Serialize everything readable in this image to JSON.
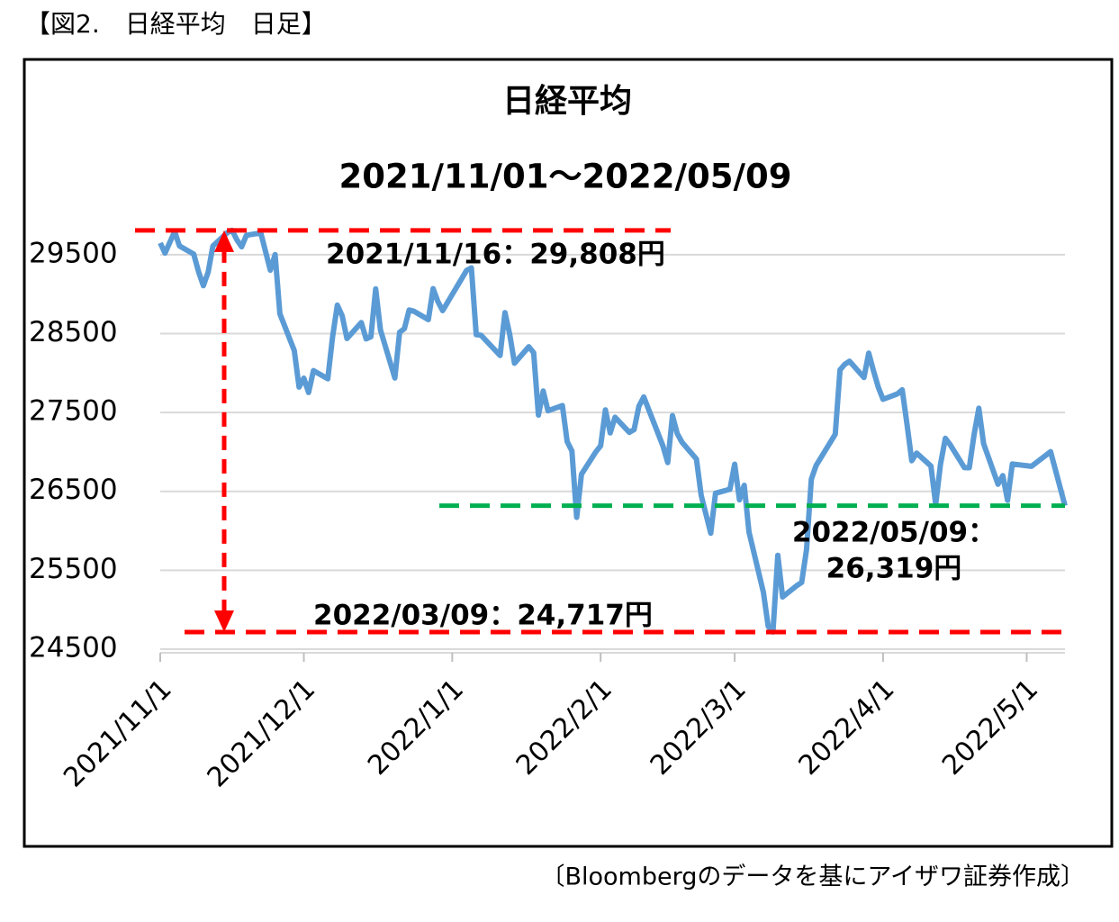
{
  "header": "【図2.　日経平均　日足】",
  "source": "〔Bloombergのデータを基にアイザワ証券作成〕",
  "chart_data": {
    "type": "line",
    "title": "日経平均",
    "subtitle": "2021/11/01～2022/05/09",
    "color": "#5b9bd5",
    "grid": true,
    "x": [
      "2021/11/1",
      "2021/11/2",
      "2021/11/4",
      "2021/11/5",
      "2021/11/8",
      "2021/11/9",
      "2021/11/10",
      "2021/11/11",
      "2021/11/12",
      "2021/11/15",
      "2021/11/16",
      "2021/11/17",
      "2021/11/18",
      "2021/11/19",
      "2021/11/22",
      "2021/11/24",
      "2021/11/25",
      "2021/11/26",
      "2021/11/29",
      "2021/11/30",
      "2021/12/1",
      "2021/12/2",
      "2021/12/3",
      "2021/12/6",
      "2021/12/7",
      "2021/12/8",
      "2021/12/9",
      "2021/12/10",
      "2021/12/13",
      "2021/12/14",
      "2021/12/15",
      "2021/12/16",
      "2021/12/17",
      "2021/12/20",
      "2021/12/21",
      "2021/12/22",
      "2021/12/23",
      "2021/12/24",
      "2021/12/27",
      "2021/12/28",
      "2021/12/29",
      "2021/12/30",
      "2022/1/4",
      "2022/1/5",
      "2022/1/6",
      "2022/1/7",
      "2022/1/11",
      "2022/1/12",
      "2022/1/13",
      "2022/1/14",
      "2022/1/17",
      "2022/1/18",
      "2022/1/19",
      "2022/1/20",
      "2022/1/21",
      "2022/1/24",
      "2022/1/25",
      "2022/1/26",
      "2022/1/27",
      "2022/1/28",
      "2022/1/31",
      "2022/2/1",
      "2022/2/2",
      "2022/2/3",
      "2022/2/4",
      "2022/2/7",
      "2022/2/8",
      "2022/2/9",
      "2022/2/10",
      "2022/2/14",
      "2022/2/15",
      "2022/2/16",
      "2022/2/17",
      "2022/2/18",
      "2022/2/21",
      "2022/2/22",
      "2022/2/24",
      "2022/2/25",
      "2022/2/28",
      "2022/3/1",
      "2022/3/2",
      "2022/3/3",
      "2022/3/4",
      "2022/3/7",
      "2022/3/8",
      "2022/3/9",
      "2022/3/10",
      "2022/3/11",
      "2022/3/14",
      "2022/3/15",
      "2022/3/16",
      "2022/3/17",
      "2022/3/18",
      "2022/3/22",
      "2022/3/23",
      "2022/3/24",
      "2022/3/25",
      "2022/3/28",
      "2022/3/29",
      "2022/3/30",
      "2022/3/31",
      "2022/4/1",
      "2022/4/4",
      "2022/4/5",
      "2022/4/6",
      "2022/4/7",
      "2022/4/8",
      "2022/4/11",
      "2022/4/12",
      "2022/4/13",
      "2022/4/14",
      "2022/4/15",
      "2022/4/18",
      "2022/4/19",
      "2022/4/20",
      "2022/4/21",
      "2022/4/22",
      "2022/4/25",
      "2022/4/26",
      "2022/4/27",
      "2022/4/28",
      "2022/5/2",
      "2022/5/6",
      "2022/5/9"
    ],
    "values": [
      29647,
      29520,
      29794,
      29611,
      29507,
      29286,
      29106,
      29277,
      29610,
      29777,
      29808,
      29689,
      29599,
      29746,
      29775,
      29303,
      29500,
      28751,
      28284,
      27822,
      27935,
      27753,
      28030,
      27927,
      28455,
      28860,
      28725,
      28437,
      28640,
      28432,
      28459,
      29066,
      28546,
      27937,
      28517,
      28562,
      28798,
      28782,
      28676,
      29069,
      28906,
      28791,
      29301,
      29332,
      28487,
      28479,
      28222,
      28765,
      28489,
      28124,
      28333,
      28257,
      27467,
      27772,
      27522,
      27588,
      27131,
      27011,
      26170,
      26717,
      27001,
      27078,
      27533,
      27241,
      27439,
      27248,
      27284,
      27579,
      27696,
      27079,
      26865,
      27460,
      27232,
      27122,
      26910,
      26449,
      25970,
      26476,
      26526,
      26844,
      26393,
      26577,
      25985,
      25221,
      24790,
      24717,
      25690,
      25162,
      25307,
      25346,
      25762,
      26652,
      26827,
      27224,
      28040,
      28110,
      28149,
      27943,
      28252,
      28027,
      27821,
      27666,
      27736,
      27787,
      27350,
      26888,
      26985,
      26821,
      26335,
      26843,
      27172,
      27093,
      26800,
      26799,
      27217,
      27553,
      27105,
      26590,
      26700,
      26386,
      26847,
      26818,
      27003,
      26319
    ],
    "xlim": [
      "2021/11/1",
      "2022/5/9"
    ],
    "xticks": [
      "2021/11/1",
      "2021/12/1",
      "2022/1/1",
      "2022/2/1",
      "2022/3/1",
      "2022/4/1",
      "2022/5/1"
    ],
    "ylim": [
      24500,
      30000
    ],
    "yticks": [
      24500,
      25500,
      26500,
      27500,
      28500,
      29500
    ],
    "annotations": [
      {
        "lines": [
          "2021/11/16：29,808円"
        ],
        "value": 29808,
        "color": "#ff0000"
      },
      {
        "lines": [
          "2022/05/09：",
          "26,319円"
        ],
        "value": 26319,
        "color": "#00b050"
      },
      {
        "lines": [
          "2022/03/09：24,717円"
        ],
        "value": 24717,
        "color": "#ff0000"
      }
    ]
  }
}
